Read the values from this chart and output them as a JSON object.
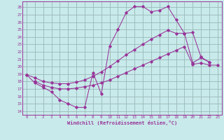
{
  "bg_color": "#c8eaea",
  "grid_color": "#9ab8b8",
  "line_color": "#993399",
  "xlabel": "Windchill (Refroidissement éolien,°C)",
  "xlim": [
    -0.5,
    23.5
  ],
  "ylim": [
    13.5,
    28.8
  ],
  "xticks": [
    0,
    1,
    2,
    3,
    4,
    5,
    6,
    7,
    8,
    9,
    10,
    11,
    12,
    13,
    14,
    15,
    16,
    17,
    18,
    19,
    20,
    21,
    22,
    23
  ],
  "yticks": [
    14,
    15,
    16,
    17,
    18,
    19,
    20,
    21,
    22,
    23,
    24,
    25,
    26,
    27,
    28
  ],
  "line1_x": [
    0,
    1,
    2,
    3,
    4,
    5,
    6,
    7,
    8,
    9,
    10,
    11,
    12,
    13,
    14,
    15,
    16,
    17,
    18,
    19,
    20,
    21,
    22
  ],
  "line1_y": [
    18.9,
    17.8,
    17.2,
    16.6,
    15.5,
    15.0,
    14.5,
    14.5,
    19.2,
    16.3,
    22.8,
    25.0,
    27.3,
    28.1,
    28.1,
    27.4,
    27.6,
    28.1,
    26.3,
    24.5,
    20.5,
    21.2,
    20.6
  ],
  "line2_x": [
    0,
    1,
    2,
    3,
    4,
    5,
    6,
    7,
    8,
    9,
    10,
    11,
    12,
    13,
    14,
    15,
    16,
    17,
    18,
    19,
    20,
    21,
    22
  ],
  "line2_y": [
    18.9,
    18.5,
    18.0,
    17.8,
    17.7,
    17.7,
    17.9,
    18.2,
    18.7,
    19.3,
    20.0,
    20.8,
    21.6,
    22.3,
    23.0,
    23.7,
    24.3,
    24.9,
    24.5,
    24.5,
    24.6,
    21.3,
    20.6
  ],
  "line3_x": [
    1,
    2,
    3,
    4,
    5,
    6,
    7,
    8,
    9,
    10,
    11,
    12,
    13,
    14,
    15,
    16,
    17,
    18,
    19,
    20,
    21,
    22,
    23
  ],
  "line3_y": [
    18.0,
    17.5,
    17.2,
    17.0,
    17.0,
    17.1,
    17.3,
    17.5,
    17.8,
    18.2,
    18.7,
    19.2,
    19.7,
    20.2,
    20.7,
    21.2,
    21.7,
    22.2,
    22.7,
    20.3,
    20.5,
    20.2,
    20.2
  ]
}
